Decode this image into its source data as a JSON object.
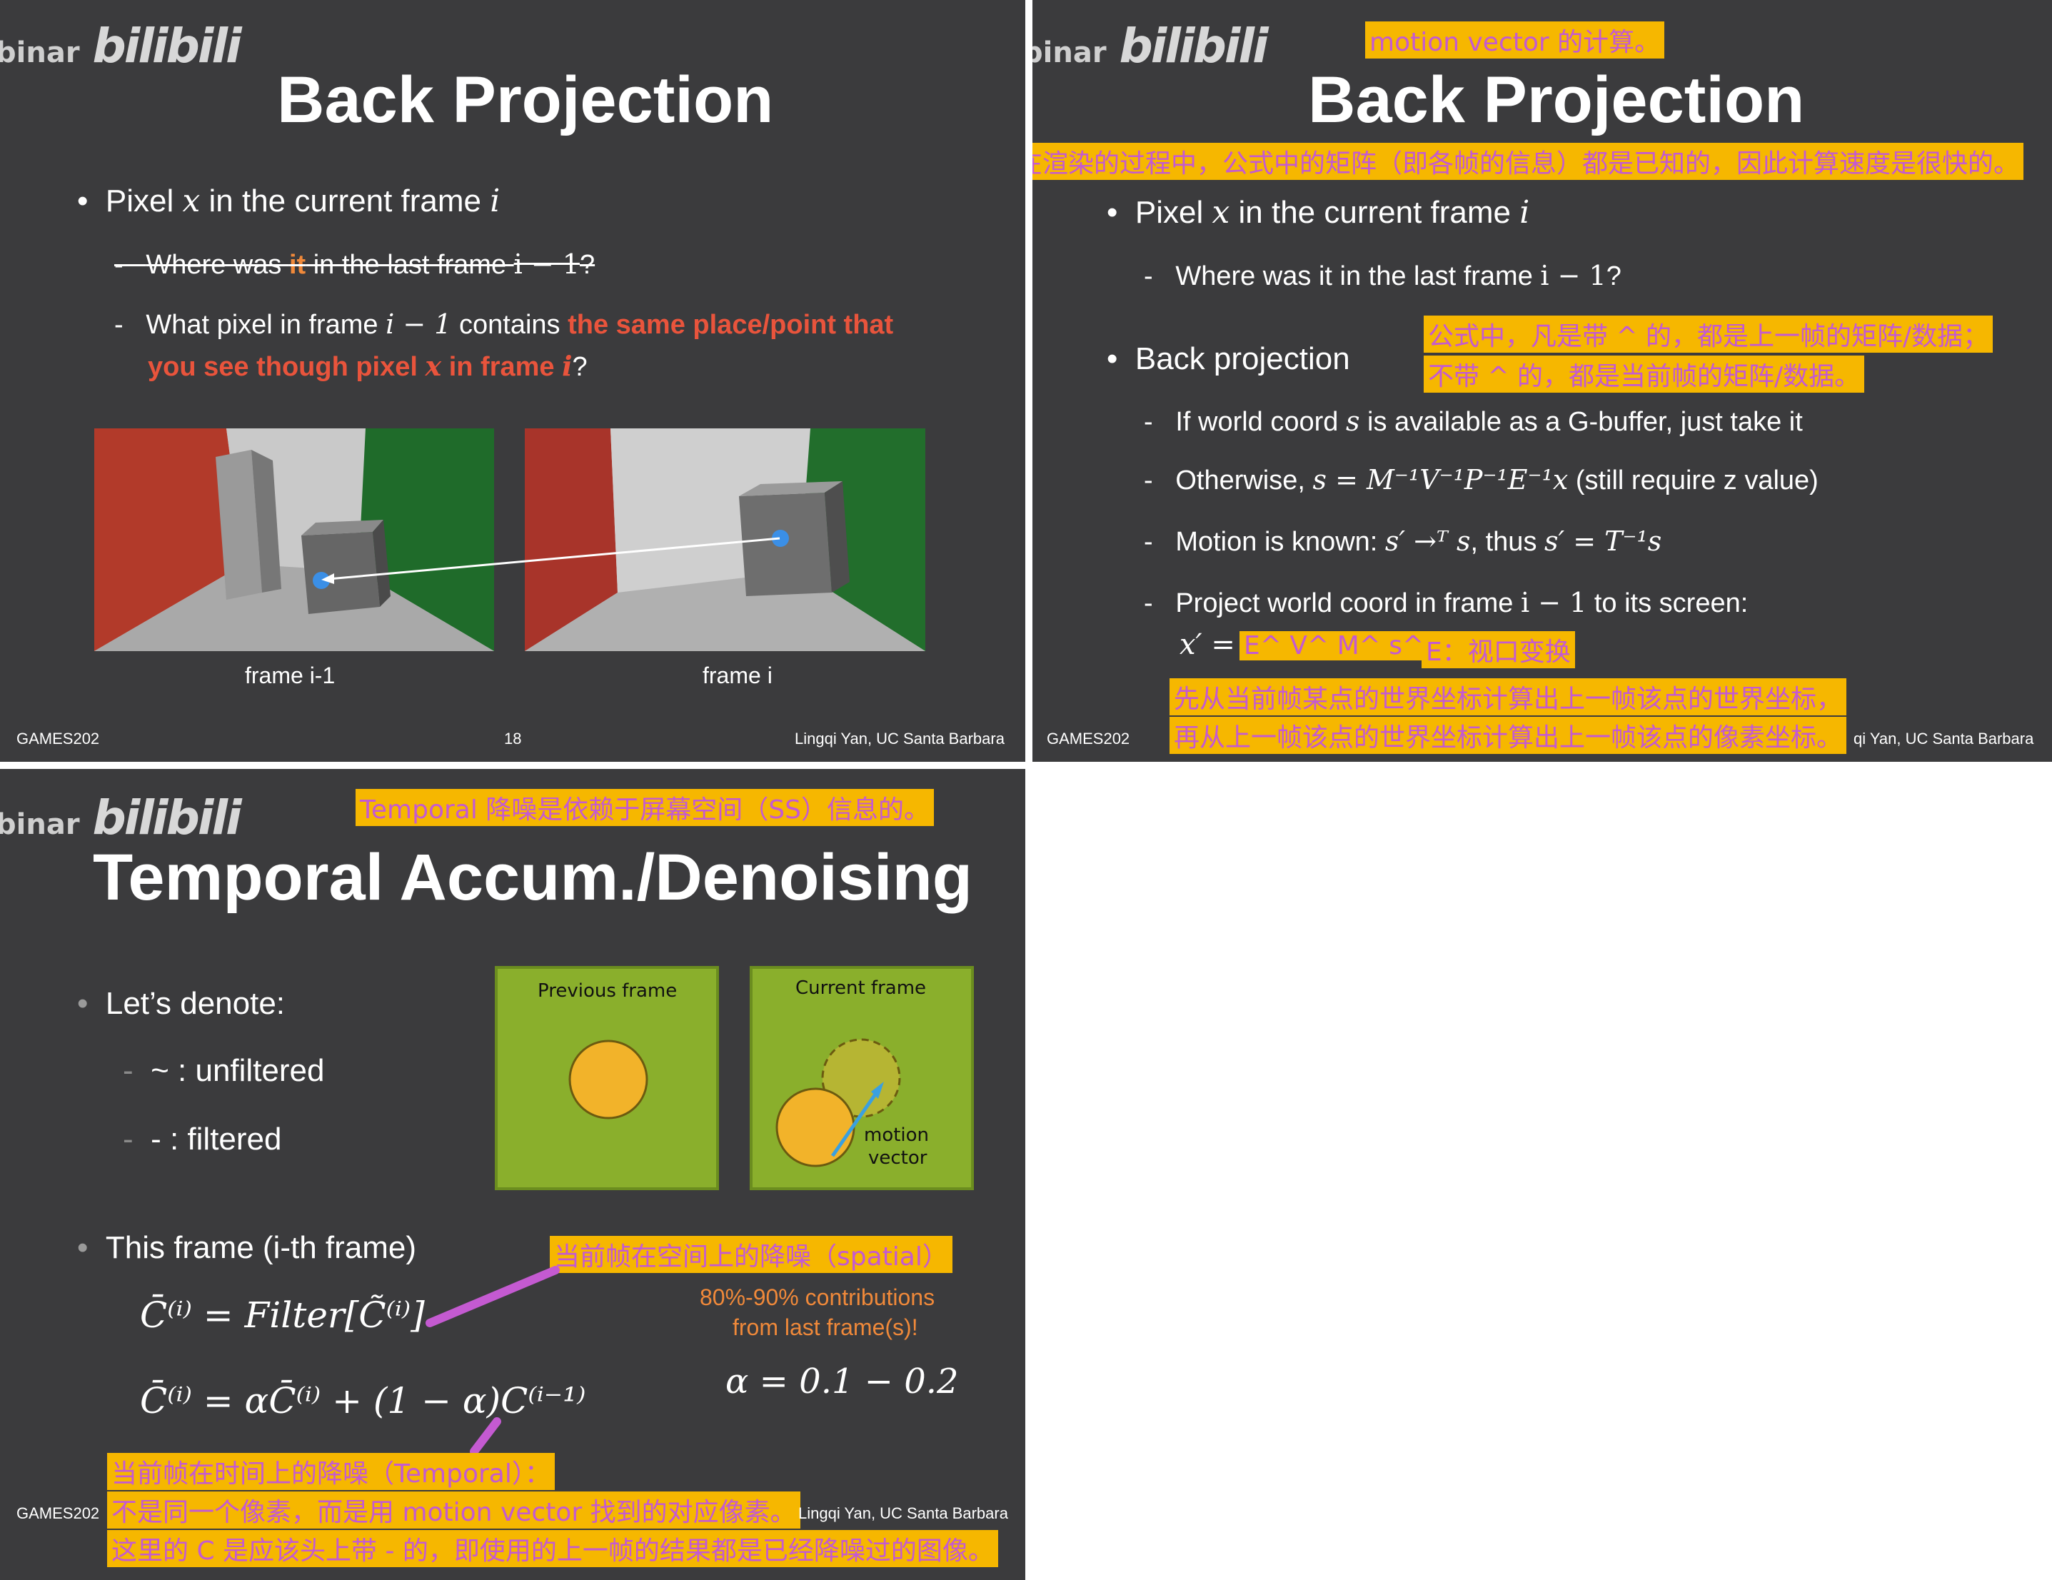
{
  "watermark": {
    "prefix": "binar",
    "logo": "bilibili"
  },
  "slide1": {
    "title": "Back Projection",
    "bullet": {
      "pre": "Pixel ",
      "var": "x",
      "mid": " in the current frame ",
      "var2": "i"
    },
    "sub1": {
      "a": "Where was ",
      "b": "it",
      "c": " in the last frame ",
      "math": "i − 1",
      "end": "?"
    },
    "sub2": {
      "a": "What pixel in frame ",
      "math": "i − 1",
      "b": " contains ",
      "red": "the same place/point that",
      "line2_red": "you see though pixel ",
      "var": "x",
      "red2": " in frame ",
      "var2": "i",
      "end": "?"
    },
    "caption_left": "frame i-1",
    "caption_right": "frame i",
    "footer_left": "GAMES202",
    "page_number": "18",
    "footer_right": "Lingqi Yan, UC Santa Barbara"
  },
  "slide2": {
    "title": "Back Projection",
    "note_top": "motion vector 的计算。",
    "note_matrix": "在渲染的过程中，公式中的矩阵（即各帧的信息）都是已知的，因此计算速度是很快的。",
    "bullet1": {
      "pre": "Pixel ",
      "var": "x",
      "mid": " in the current frame ",
      "var2": "i"
    },
    "sub1": {
      "a": "Where was it in the last frame ",
      "math": "i − 1",
      "end": "?"
    },
    "note_hat_1": "公式中，凡是带 ^ 的，都是上一帧的矩阵/数据；",
    "note_hat_2": "不带 ^ 的，都是当前帧的矩阵/数据。",
    "bullet2": "Back projection",
    "items": [
      {
        "a": "If world coord ",
        "var": "s",
        "b": " is available as a G-buffer, just take it"
      },
      {
        "a": "Otherwise, ",
        "math": "s = M⁻¹V⁻¹P⁻¹E⁻¹x",
        "b": " (still require z value)"
      },
      {
        "a": "Motion is known: ",
        "math": "s′ →ᵀ s",
        "b": ", thus ",
        "math2": "s′ = T⁻¹s"
      },
      {
        "a": "Project world coord in frame ",
        "math": "i − 1",
        "b": " to its screen:"
      }
    ],
    "xprime": "x′ =",
    "note_formula": "E^ V^ M^ s^",
    "note_e": "E：视口变换",
    "note_bottom_1": "先从当前帧某点的世界坐标计算出上一帧该点的世界坐标，",
    "note_bottom_2": "再从上一帧该点的世界坐标计算出上一帧该点的像素坐标。",
    "footer_left": "GAMES202",
    "footer_right": "qi Yan, UC Santa Barbara"
  },
  "slide3": {
    "title": "Temporal Accum./Denoising",
    "note_top": "Temporal 降噪是依赖于屏幕空间（SS）信息的。",
    "denote": "Let’s denote:",
    "unfiltered": "~ : unfiltered",
    "filtered": "- : filtered",
    "prev_frame": "Previous frame",
    "curr_frame": "Current frame",
    "motion_1": "motion",
    "motion_2": "vector",
    "this_frame": "This frame (i-th frame)",
    "note_spatial": "当前帧在空间上的降噪（spatial）",
    "contrib_1": "80%-90% contributions",
    "contrib_2": "from last frame(s)!",
    "eq1": "C̄⁽ⁱ⁾ = Filter[C̃⁽ⁱ⁾]",
    "eq2": "C̄⁽ⁱ⁾ = αC̄⁽ⁱ⁾ + (1 − α)C⁽ⁱ⁻¹⁾",
    "alpha": "α = 0.1 − 0.2",
    "note_temporal_1": "当前帧在时间上的降噪（Temporal）：",
    "note_temporal_2": "不是同一个像素，而是用 motion vector 找到的对应像素。",
    "note_temporal_3": "这里的 C 是应该头上带 - 的，即使用的上一帧的结果都是已经降噪过的图像。",
    "footer_left": "GAMES202",
    "footer_right": "Lingqi Yan, UC Santa Barbara"
  },
  "colors": {
    "slide_bg": "#3b3b3d",
    "highlight": "#f6b700",
    "note_text": "#c45ad1",
    "emphasis_red": "#e9543c",
    "green_panel": "#8aaf2c",
    "ball": "#f2b32a",
    "arrow": "#3aa0e0"
  }
}
